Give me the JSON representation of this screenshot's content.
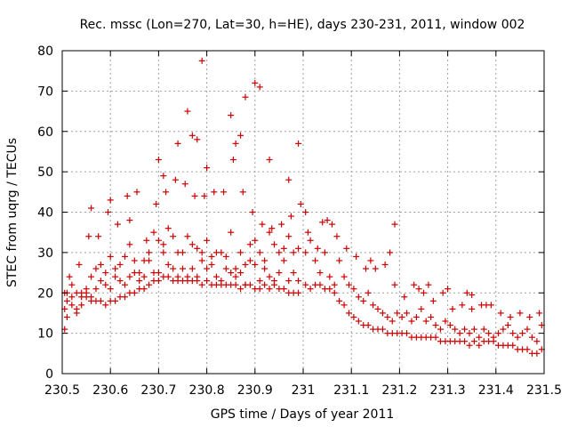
{
  "chart_data": {
    "type": "scatter",
    "title": "Rec. mssc (Lon=270, Lat=30, h=HE), days 230-231, 2011, window 002",
    "xlabel": "GPS time / Days of year 2011",
    "ylabel": "STEC from uqrg / TECUs",
    "xlim": [
      230.5,
      231.5
    ],
    "ylim": [
      0,
      80
    ],
    "xticks": [
      230.5,
      230.6,
      230.7,
      230.8,
      230.9,
      231,
      231.1,
      231.2,
      231.3,
      231.4,
      231.5
    ],
    "xtick_labels": [
      "230.5",
      "230.6",
      "230.7",
      "230.8",
      "230.9",
      "231",
      "231.1",
      "231.2",
      "231.3",
      "231.4",
      "231.5"
    ],
    "yticks": [
      0,
      10,
      20,
      30,
      40,
      50,
      60,
      70,
      80
    ],
    "ytick_labels": [
      "0",
      "10",
      "20",
      "30",
      "40",
      "50",
      "60",
      "70",
      "80"
    ],
    "grid": true,
    "marker": "plus",
    "color": "#cc0000",
    "series": [
      {
        "x": [
          230.505,
          230.51,
          230.52,
          230.53,
          230.54,
          230.55,
          230.56,
          230.57,
          230.58,
          230.59,
          230.6,
          230.61,
          230.62,
          230.63,
          230.64,
          230.65,
          230.66,
          230.67,
          230.68,
          230.69,
          230.7,
          230.71,
          230.72,
          230.73,
          230.74,
          230.75,
          230.76,
          230.77,
          230.78,
          230.79,
          230.8,
          230.81,
          230.82,
          230.83,
          230.84,
          230.85,
          230.86,
          230.87,
          230.88,
          230.89,
          230.9,
          230.91,
          230.92,
          230.93,
          230.94,
          230.95,
          230.96,
          230.97,
          230.98,
          230.99
        ],
        "y": [
          20,
          20,
          19,
          20,
          19,
          19,
          18,
          18,
          18,
          17,
          18,
          18,
          19,
          19,
          20,
          20,
          21,
          21,
          22,
          23,
          23,
          24,
          24,
          23,
          23,
          23,
          23,
          23,
          23,
          22,
          23,
          22,
          22,
          22,
          22,
          22,
          22,
          21,
          22,
          22,
          21,
          21,
          22,
          21,
          22,
          21,
          21,
          20,
          20,
          20
        ]
      },
      {
        "x": [
          230.505,
          230.51,
          230.52,
          230.53,
          230.54,
          230.55,
          230.56,
          230.57,
          230.58,
          230.59,
          230.6,
          230.61,
          230.62,
          230.63,
          230.64,
          230.65,
          230.66,
          230.67,
          230.68,
          230.69,
          230.7,
          230.71,
          230.72,
          230.73,
          230.74,
          230.75,
          230.76,
          230.77,
          230.78,
          230.79,
          230.8,
          230.81,
          230.82,
          230.83,
          230.84,
          230.85,
          230.86,
          230.87,
          230.88,
          230.89,
          230.9,
          230.91,
          230.92,
          230.93,
          230.94,
          230.95,
          230.96,
          230.97,
          230.98,
          230.99
        ],
        "y": [
          16,
          18,
          17,
          16,
          20,
          21,
          19,
          21,
          23,
          22,
          21,
          24,
          23,
          22,
          24,
          25,
          23,
          24,
          28,
          25,
          25,
          30,
          27,
          26,
          24,
          26,
          24,
          26,
          24,
          28,
          26,
          27,
          24,
          23,
          26,
          25,
          24,
          25,
          22,
          28,
          27,
          23,
          26,
          24,
          23,
          25,
          28,
          23,
          25,
          23
        ]
      },
      {
        "x": [
          230.505,
          230.51,
          230.52,
          230.53,
          230.54,
          230.55,
          230.56,
          230.57,
          230.58,
          230.59,
          230.6,
          230.61,
          230.62,
          230.63,
          230.64,
          230.65,
          230.66,
          230.67,
          230.68,
          230.69,
          230.7,
          230.71,
          230.72,
          230.73,
          230.74,
          230.75,
          230.76,
          230.77,
          230.78,
          230.79,
          230.8,
          230.81,
          230.82,
          230.83,
          230.84,
          230.85,
          230.86,
          230.87,
          230.88,
          230.89,
          230.9,
          230.91,
          230.92,
          230.93,
          230.94,
          230.95,
          230.96,
          230.97,
          230.98,
          230.99
        ],
        "y": [
          11,
          14,
          22,
          15,
          17,
          20,
          24,
          26,
          27,
          25,
          29,
          26,
          27,
          29,
          32,
          28,
          25,
          28,
          30,
          35,
          33,
          32,
          36,
          34,
          30,
          30,
          34,
          32,
          31,
          30,
          33,
          29,
          30,
          30,
          29,
          35,
          26,
          30,
          27,
          32,
          33,
          30,
          28,
          35,
          32,
          30,
          31,
          34,
          30,
          31
        ]
      },
      {
        "x": [
          230.515,
          230.535,
          230.555,
          230.575,
          230.595,
          230.615,
          230.635,
          230.655,
          230.675,
          230.695,
          230.715,
          230.735,
          230.755,
          230.775,
          230.795,
          230.815,
          230.835,
          230.855,
          230.875,
          230.895,
          230.915,
          230.935,
          230.955,
          230.975,
          230.995
        ],
        "y": [
          24,
          27,
          34,
          34,
          40,
          37,
          44,
          45,
          33,
          42,
          45,
          48,
          47,
          44,
          44,
          45,
          45,
          53,
          45,
          40,
          37,
          36,
          37,
          39,
          42
        ]
      },
      {
        "x": [
          230.56,
          230.6,
          230.64,
          230.7,
          230.71,
          230.74,
          230.76,
          230.77,
          230.78,
          230.79,
          230.8,
          230.85,
          230.86,
          230.87,
          230.88,
          230.9,
          230.91,
          230.93,
          230.97,
          230.99
        ],
        "y": [
          41,
          43,
          38,
          53,
          49,
          57,
          65,
          59,
          58,
          77.5,
          51,
          64,
          57,
          59,
          68.5,
          72,
          71,
          53,
          48,
          57
        ]
      },
      {
        "x": [
          231.005,
          231.015,
          231.025,
          231.035,
          231.045,
          231.055,
          231.065,
          231.075,
          231.085,
          231.095,
          231.105,
          231.115,
          231.125,
          231.135,
          231.145,
          231.155,
          231.165,
          231.175,
          231.185,
          231.195,
          231.205,
          231.215,
          231.225,
          231.235,
          231.245,
          231.255,
          231.265,
          231.275,
          231.285,
          231.295,
          231.305,
          231.315,
          231.325,
          231.335,
          231.345,
          231.355,
          231.365,
          231.375,
          231.385,
          231.395,
          231.405,
          231.415,
          231.425,
          231.435,
          231.445,
          231.455,
          231.465,
          231.475,
          231.485,
          231.495
        ],
        "y": [
          22,
          21,
          22,
          22,
          21,
          21,
          20,
          18,
          17,
          15,
          14,
          13,
          12,
          12,
          11,
          11,
          11,
          10,
          10,
          10,
          10,
          10,
          9,
          9,
          9,
          9,
          9,
          9,
          8,
          8,
          8,
          8,
          8,
          8,
          7,
          8,
          7,
          8,
          8,
          8,
          7,
          7,
          7,
          7,
          6,
          6,
          6,
          5,
          5,
          6
        ]
      },
      {
        "x": [
          231.005,
          231.015,
          231.025,
          231.035,
          231.045,
          231.055,
          231.065,
          231.075,
          231.085,
          231.095,
          231.105,
          231.115,
          231.125,
          231.135,
          231.145,
          231.155,
          231.165,
          231.175,
          231.185,
          231.195,
          231.205,
          231.215,
          231.225,
          231.235,
          231.245,
          231.255,
          231.265,
          231.275,
          231.285,
          231.295,
          231.305,
          231.315,
          231.325,
          231.335,
          231.345,
          231.355,
          231.365,
          231.375,
          231.385,
          231.395,
          231.405,
          231.415,
          231.425,
          231.435,
          231.445,
          231.455,
          231.465,
          231.475,
          231.485,
          231.495
        ],
        "y": [
          30,
          33,
          28,
          25,
          30,
          24,
          22,
          28,
          24,
          22,
          21,
          19,
          18,
          20,
          17,
          16,
          15,
          14,
          13,
          15,
          14,
          15,
          13,
          14,
          16,
          13,
          14,
          12,
          11,
          13,
          12,
          11,
          10,
          11,
          10,
          11,
          9,
          11,
          10,
          9,
          10,
          11,
          12,
          10,
          9,
          10,
          11,
          9,
          8,
          12
        ]
      },
      {
        "x": [
          231.01,
          231.03,
          231.05,
          231.07,
          231.09,
          231.11,
          231.13,
          231.15,
          231.17,
          231.19,
          231.21,
          231.23,
          231.25,
          231.27,
          231.29,
          231.31,
          231.33,
          231.35,
          231.37,
          231.39,
          231.41,
          231.43,
          231.45,
          231.47,
          231.49
        ],
        "y": [
          35,
          31,
          38,
          34,
          31,
          29,
          26,
          26,
          27,
          22,
          19,
          22,
          20,
          18,
          20,
          16,
          17,
          16,
          17,
          17,
          15,
          14,
          15,
          14,
          15
        ]
      },
      {
        "x": [
          231.005,
          231.04,
          231.06,
          231.14,
          231.18,
          231.19,
          231.24,
          231.26,
          231.3,
          231.34,
          231.35,
          231.38
        ],
        "y": [
          40,
          37.5,
          37,
          28,
          30,
          37,
          21,
          22,
          21,
          20,
          19.5,
          17
        ]
      }
    ]
  }
}
